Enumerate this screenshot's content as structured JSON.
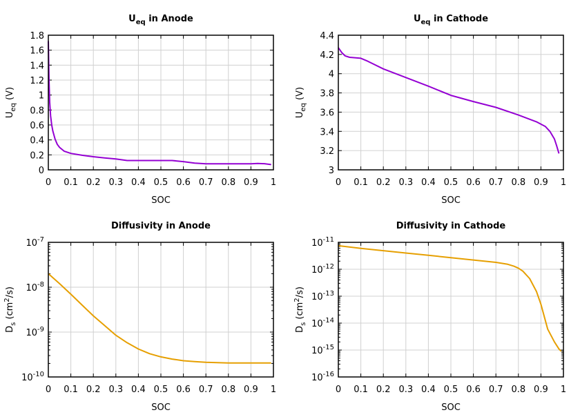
{
  "chart_data": [
    {
      "type": "line",
      "title": {
        "main": "U",
        "sub": "eq",
        "rest": " in Anode"
      },
      "ylabel": {
        "main": "U",
        "sub": "eq",
        "rest": " (V)"
      },
      "xlabel": "SOC",
      "xlim": [
        0,
        1
      ],
      "ylim": [
        0,
        1.8
      ],
      "yscale": "linear",
      "xticks": [
        "0",
        "0.1",
        "0.2",
        "0.3",
        "0.4",
        "0.5",
        "0.6",
        "0.7",
        "0.8",
        "0.9",
        "1"
      ],
      "yticks": [
        "0",
        "0.2",
        "0.4",
        "0.6",
        "0.8",
        "1",
        "1.2",
        "1.4",
        "1.6",
        "1.8"
      ],
      "grid": true,
      "color": "#9400d3",
      "x": [
        0,
        0.003,
        0.006,
        0.01,
        0.015,
        0.02,
        0.03,
        0.04,
        0.05,
        0.07,
        0.1,
        0.15,
        0.2,
        0.25,
        0.3,
        0.35,
        0.4,
        0.45,
        0.5,
        0.55,
        0.6,
        0.65,
        0.7,
        0.8,
        0.9,
        0.93,
        0.96,
        0.99
      ],
      "y": [
        1.72,
        1.2,
        0.9,
        0.72,
        0.6,
        0.52,
        0.41,
        0.34,
        0.3,
        0.25,
        0.22,
        0.195,
        0.175,
        0.16,
        0.145,
        0.125,
        0.125,
        0.125,
        0.125,
        0.125,
        0.11,
        0.09,
        0.08,
        0.08,
        0.08,
        0.085,
        0.082,
        0.07
      ]
    },
    {
      "type": "line",
      "title": {
        "main": "U",
        "sub": "eq",
        "rest": " in Cathode"
      },
      "ylabel": {
        "main": "U",
        "sub": "eq",
        "rest": " (V)"
      },
      "xlabel": "SOC",
      "xlim": [
        0,
        1
      ],
      "ylim": [
        3,
        4.4
      ],
      "yscale": "linear",
      "xticks": [
        "0",
        "0.1",
        "0.2",
        "0.3",
        "0.4",
        "0.5",
        "0.6",
        "0.7",
        "0.8",
        "0.9",
        "1"
      ],
      "yticks": [
        "3",
        "3.2",
        "3.4",
        "3.6",
        "3.8",
        "4",
        "4.2",
        "4.4"
      ],
      "grid": true,
      "color": "#9400d3",
      "x": [
        0,
        0.015,
        0.03,
        0.05,
        0.1,
        0.13,
        0.2,
        0.3,
        0.4,
        0.5,
        0.6,
        0.7,
        0.8,
        0.88,
        0.92,
        0.94,
        0.96,
        0.97,
        0.98
      ],
      "y": [
        4.27,
        4.22,
        4.185,
        4.17,
        4.16,
        4.13,
        4.05,
        3.96,
        3.87,
        3.775,
        3.71,
        3.65,
        3.57,
        3.5,
        3.45,
        3.4,
        3.32,
        3.25,
        3.17
      ]
    },
    {
      "type": "line",
      "title": {
        "main": "Diffusivity in Anode",
        "sub": "",
        "rest": ""
      },
      "ylabel": {
        "main": "D",
        "sub": "s",
        "rest": " (cm",
        "sup": "2",
        "end": "/s)"
      },
      "xlabel": "SOC",
      "xlim": [
        0,
        1
      ],
      "ylim": [
        1e-10,
        1e-07
      ],
      "yscale": "log",
      "xticks": [
        "0",
        "0.1",
        "0.2",
        "0.3",
        "0.4",
        "0.5",
        "0.6",
        "0.7",
        "0.8",
        "0.9",
        "1"
      ],
      "yticks": [
        "-10",
        "-9",
        "-8",
        "-7"
      ],
      "grid": true,
      "color": "#e69f00",
      "x": [
        0,
        0.05,
        0.1,
        0.15,
        0.2,
        0.25,
        0.3,
        0.35,
        0.4,
        0.45,
        0.5,
        0.55,
        0.6,
        0.65,
        0.7,
        0.8,
        0.9,
        0.99
      ],
      "y": [
        2e-08,
        1.2e-08,
        7e-09,
        4e-09,
        2.3e-09,
        1.4e-09,
        8.5e-10,
        5.8e-10,
        4.2e-10,
        3.3e-10,
        2.8e-10,
        2.5e-10,
        2.3e-10,
        2.2e-10,
        2.12e-10,
        2.05e-10,
        2.05e-10,
        2.05e-10
      ]
    },
    {
      "type": "line",
      "title": {
        "main": "Diffusivity in Cathode",
        "sub": "",
        "rest": ""
      },
      "ylabel": {
        "main": "D",
        "sub": "s",
        "rest": " (cm",
        "sup": "2",
        "end": "/s)"
      },
      "xlabel": "SOC",
      "xlim": [
        0,
        1
      ],
      "ylim": [
        1e-16,
        1e-11
      ],
      "yscale": "log",
      "xticks": [
        "0",
        "0.1",
        "0.2",
        "0.3",
        "0.4",
        "0.5",
        "0.6",
        "0.7",
        "0.8",
        "0.9",
        "1"
      ],
      "yticks": [
        "-16",
        "-15",
        "-14",
        "-13",
        "-12",
        "-11"
      ],
      "grid": true,
      "color": "#e69f00",
      "x": [
        0,
        0.1,
        0.2,
        0.3,
        0.4,
        0.5,
        0.6,
        0.7,
        0.75,
        0.78,
        0.8,
        0.82,
        0.85,
        0.88,
        0.9,
        0.93,
        0.96,
        0.98,
        0.99
      ],
      "y": [
        7.5e-12,
        6e-12,
        4.9e-12,
        4e-12,
        3.3e-12,
        2.7e-12,
        2.2e-12,
        1.8e-12,
        1.55e-12,
        1.3e-12,
        1.1e-12,
        8.5e-13,
        4.5e-13,
        1.5e-13,
        5e-14,
        6e-15,
        2e-15,
        1.1e-15,
        9e-16
      ]
    }
  ]
}
